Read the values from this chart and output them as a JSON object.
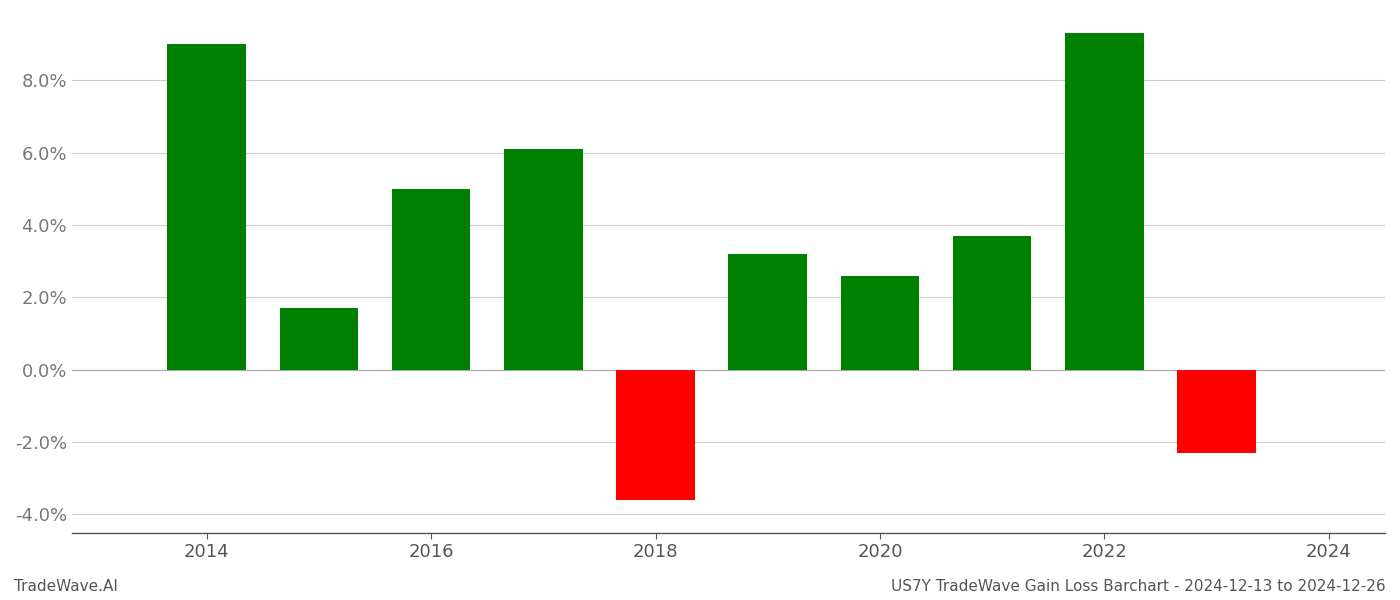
{
  "years": [
    2014,
    2015,
    2016,
    2017,
    2018,
    2019,
    2020,
    2021,
    2022,
    2023
  ],
  "values": [
    0.09,
    0.017,
    0.05,
    0.061,
    -0.036,
    0.032,
    0.026,
    0.037,
    0.093,
    -0.023
  ],
  "bar_colors": [
    "#008000",
    "#008000",
    "#008000",
    "#008000",
    "#ff0000",
    "#008000",
    "#008000",
    "#008000",
    "#008000",
    "#ff0000"
  ],
  "ylim": [
    -0.045,
    0.098
  ],
  "yticks": [
    -0.04,
    -0.02,
    0.0,
    0.02,
    0.04,
    0.06,
    0.08
  ],
  "title": "US7Y TradeWave Gain Loss Barchart - 2024-12-13 to 2024-12-26",
  "footer_left": "TradeWave.AI",
  "background_color": "#ffffff",
  "bar_width": 0.7,
  "xlim": [
    2012.8,
    2024.5
  ],
  "xtick_years": [
    2014,
    2016,
    2018,
    2020,
    2022,
    2024
  ]
}
